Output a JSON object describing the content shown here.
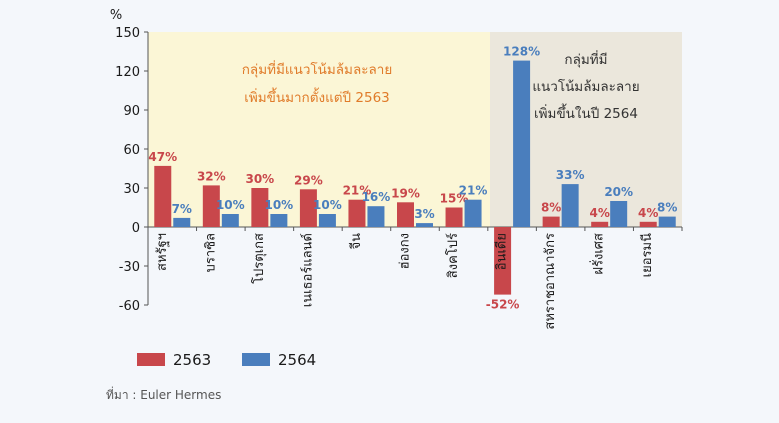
{
  "chart_data": {
    "type": "bar",
    "unit": "%",
    "ylim": [
      -60,
      150
    ],
    "yticks": [
      -60,
      -30,
      0,
      30,
      60,
      90,
      120,
      150
    ],
    "categories": [
      "สหรัฐฯ",
      "บราซิล",
      "โปรตุเกส",
      "เนเธอร์แลนด์",
      "จีน",
      "ฮ่องกง",
      "สิงคโปร์",
      "อินเดีย",
      "สหราชอาณาจักร",
      "ฝรั่งเศส",
      "เยอรมนี"
    ],
    "series": [
      {
        "name": "2563",
        "color": "#c8474b",
        "values": [
          47,
          32,
          30,
          29,
          21,
          19,
          15,
          -52,
          8,
          4,
          4
        ],
        "labels": [
          "47%",
          "32%",
          "30%",
          "29%",
          "21%",
          "19%",
          "15%",
          "-52%",
          "8%",
          "4%",
          "4%"
        ]
      },
      {
        "name": "2564",
        "color": "#4a7ebd",
        "values": [
          7,
          10,
          10,
          10,
          16,
          3,
          21,
          128,
          33,
          20,
          8
        ],
        "labels": [
          "7%",
          "10%",
          "10%",
          "10%",
          "16%",
          "3%",
          "21%",
          "128%",
          "33%",
          "20%",
          "8%"
        ]
      }
    ],
    "annotations": [
      {
        "lines": [
          "กลุ่มที่มีแนวโน้มล้มละลาย",
          "เพิ่มขึ้นมากตั้งแต่ปี 2563"
        ],
        "color": "#e07b2a",
        "background": "#fbf6d6"
      },
      {
        "lines": [
          "กลุ่มที่มี",
          "แนวโน้มล้มละลาย",
          "เพิ่มขึ้นในปี 2564"
        ],
        "color": "#333333",
        "background": "#ebe7dc"
      }
    ],
    "grid": false,
    "legend_position": "bottom-left"
  },
  "source": "ที่มา : Euler Hermes"
}
